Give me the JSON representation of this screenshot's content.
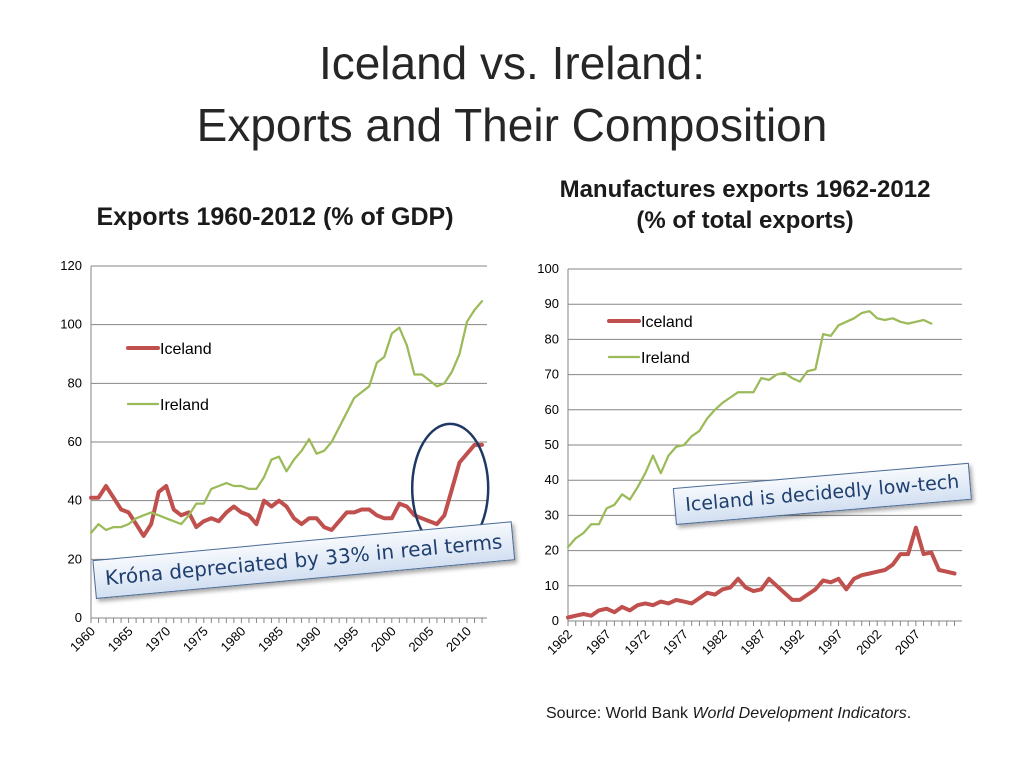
{
  "title_line1": "Iceland vs. Ireland:",
  "title_line2": "Exports and Their Composition",
  "callouts": {
    "krona": "Króna depreciated by 33% in real terms",
    "iceland": "Iceland is decidedly low-tech"
  },
  "source": {
    "prefix": "Source: World Bank ",
    "italic": "World Development Indicators",
    "suffix": "."
  },
  "colors": {
    "iceland": "#c0504d",
    "ireland": "#9bbb59",
    "grid": "#868686",
    "ellipse": "#1f3864"
  },
  "chart_data": [
    {
      "type": "line",
      "title": "Exports 1960-2012 (% of GDP)",
      "xlabel": "",
      "ylabel": "",
      "ylim": [
        0,
        120
      ],
      "yticks": [
        "0",
        "20",
        "40",
        "60",
        "80",
        "100",
        "120"
      ],
      "x_start": 1960,
      "xticks": [
        "1960",
        "1965",
        "1970",
        "1975",
        "1980",
        "1985",
        "1990",
        "1995",
        "2000",
        "2005",
        "2010"
      ],
      "legend": [
        "Iceland",
        "Ireland"
      ],
      "legend_position": "top-left",
      "annotation": "ellipse around Iceland 2003-2012",
      "series": [
        {
          "name": "Iceland",
          "values": [
            41,
            41,
            45,
            41,
            37,
            36,
            32,
            28,
            32,
            43,
            45,
            37,
            35,
            36,
            31,
            33,
            34,
            33,
            36,
            38,
            36,
            35,
            32,
            40,
            38,
            40,
            38,
            34,
            32,
            34,
            34,
            31,
            30,
            33,
            36,
            36,
            37,
            37,
            35,
            34,
            34,
            39,
            38,
            35,
            34,
            33,
            32,
            35,
            44,
            53,
            56,
            59,
            59
          ]
        },
        {
          "name": "Ireland",
          "values": [
            29,
            32,
            30,
            31,
            31,
            32,
            34,
            35,
            36,
            35,
            34,
            33,
            32,
            35,
            39,
            39,
            44,
            45,
            46,
            45,
            45,
            44,
            44,
            48,
            54,
            55,
            50,
            54,
            57,
            61,
            56,
            57,
            60,
            65,
            70,
            75,
            77,
            79,
            87,
            89,
            97,
            99,
            93,
            83,
            83,
            81,
            79,
            80,
            84,
            90,
            101,
            105,
            108
          ]
        }
      ]
    },
    {
      "type": "line",
      "title_line1": "Manufactures exports 1962-2012",
      "title_line2": "(% of total exports)",
      "xlabel": "",
      "ylabel": "",
      "ylim": [
        0,
        100
      ],
      "yticks": [
        "0",
        "10",
        "20",
        "30",
        "40",
        "50",
        "60",
        "70",
        "80",
        "90",
        "100"
      ],
      "x_start": 1962,
      "xticks": [
        "1962",
        "1967",
        "1972",
        "1977",
        "1982",
        "1987",
        "1992",
        "1997",
        "2002",
        "2007"
      ],
      "legend": [
        "Iceland",
        "Ireland"
      ],
      "legend_position": "top-left",
      "series": [
        {
          "name": "Iceland",
          "values": [
            1,
            1.5,
            2,
            1.5,
            3,
            3.5,
            2.5,
            4,
            3,
            4.5,
            5,
            4.5,
            5.5,
            5,
            6,
            5.5,
            5,
            6.5,
            8,
            7.5,
            9,
            9.5,
            12,
            9.5,
            8.5,
            9,
            12,
            10,
            8,
            6,
            6,
            7.5,
            9,
            11.5,
            11,
            12,
            9,
            12,
            13,
            13.5,
            14,
            14.5,
            16,
            19,
            19,
            26.5,
            19,
            19.5,
            14.5,
            14,
            13.5
          ]
        },
        {
          "name": "Ireland",
          "values": [
            21,
            23.5,
            25,
            27.5,
            27.5,
            32,
            33,
            36,
            34.5,
            38,
            42,
            47,
            42,
            47,
            49.5,
            50,
            52.5,
            54,
            57.5,
            60,
            62,
            63.5,
            65,
            65,
            65,
            69,
            68.5,
            70,
            70.5,
            69,
            68,
            71,
            71.5,
            81.5,
            81,
            84,
            85,
            86,
            87.5,
            88,
            86,
            85.5,
            86,
            85,
            84.5,
            85,
            85.5,
            84.5
          ]
        }
      ]
    }
  ]
}
